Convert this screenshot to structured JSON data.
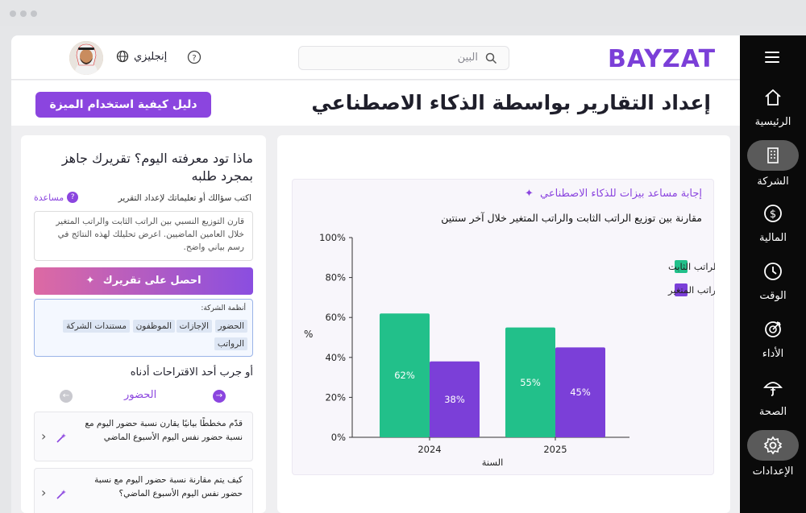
{
  "nav": {
    "items": [
      {
        "label": "الرئيسية",
        "icon": "home-icon"
      },
      {
        "label": "الشركة",
        "icon": "building-icon"
      },
      {
        "label": "المالية",
        "icon": "dollar-icon"
      },
      {
        "label": "الوقت",
        "icon": "clock-icon"
      },
      {
        "label": "الأداء",
        "icon": "target-icon"
      },
      {
        "label": "الصحة",
        "icon": "umbrella-icon"
      },
      {
        "label": "الإعدادات",
        "icon": "gear-icon"
      }
    ]
  },
  "header": {
    "logo": "BAYZAT",
    "search_placeholder": "البين",
    "language": "إنجليزي"
  },
  "page": {
    "title": "إعداد التقارير بواسطة الذكاء الاصطناعي",
    "guide_button": "دليل كيفية استخدام الميزة"
  },
  "left": {
    "question": "ماذا تود معرفته اليوم؟ تقريرك جاهز بمجرد طلبه",
    "hint": "اكتب سؤالك أو تعليماتك لإعداد التقرير",
    "help": "مساعدة",
    "prompt": "قارن التوزيع النسبي بين الراتب الثابت والراتب المتغير خلال العامين الماضيين. اعرض تحليلك لهذه النتائج في رسم بياني واضح.",
    "get_button": "احصل على تقريرك",
    "systems_title": "أنظمة الشركة:",
    "systems": [
      "الحضور",
      "الإجازات",
      "الموظفون",
      "مستندات الشركة",
      "الرواتب"
    ],
    "or_try": "أو جرب أحد الاقتراحات أدناه",
    "category": "الحضور",
    "suggestions": [
      "قدّم مخططًا بيانيًا يقارن نسبة حضور اليوم مع نسبة حضور نفس اليوم الأسبوع الماضي",
      "كيف يتم مقارنة نسبة حضور اليوم مع نسبة حضور نفس اليوم الأسبوع الماضي؟"
    ]
  },
  "response": {
    "title": "إجابة مساعد بيزات للذكاء الاصطناعي",
    "colors": {
      "fixed": "#22c08a",
      "variable": "#7b3fd8"
    }
  },
  "chart_data": {
    "type": "bar",
    "title": "مقارنة بين توزيع الراتب الثابت والراتب المتغير خلال آخر سنتين",
    "xlabel": "السنة",
    "ylabel": "%",
    "categories": [
      "2024",
      "2025"
    ],
    "series": [
      {
        "name": "الراتب الثابت",
        "values": [
          62,
          55
        ]
      },
      {
        "name": "الراتب المتغير",
        "values": [
          38,
          45
        ]
      }
    ],
    "ylim": [
      0,
      100
    ],
    "yticks": [
      "0%",
      "20%",
      "40%",
      "60%",
      "80%",
      "100%"
    ],
    "data_labels": [
      [
        "62%",
        "55%"
      ],
      [
        "38%",
        "45%"
      ]
    ],
    "legend": "top-right",
    "grid": false
  }
}
